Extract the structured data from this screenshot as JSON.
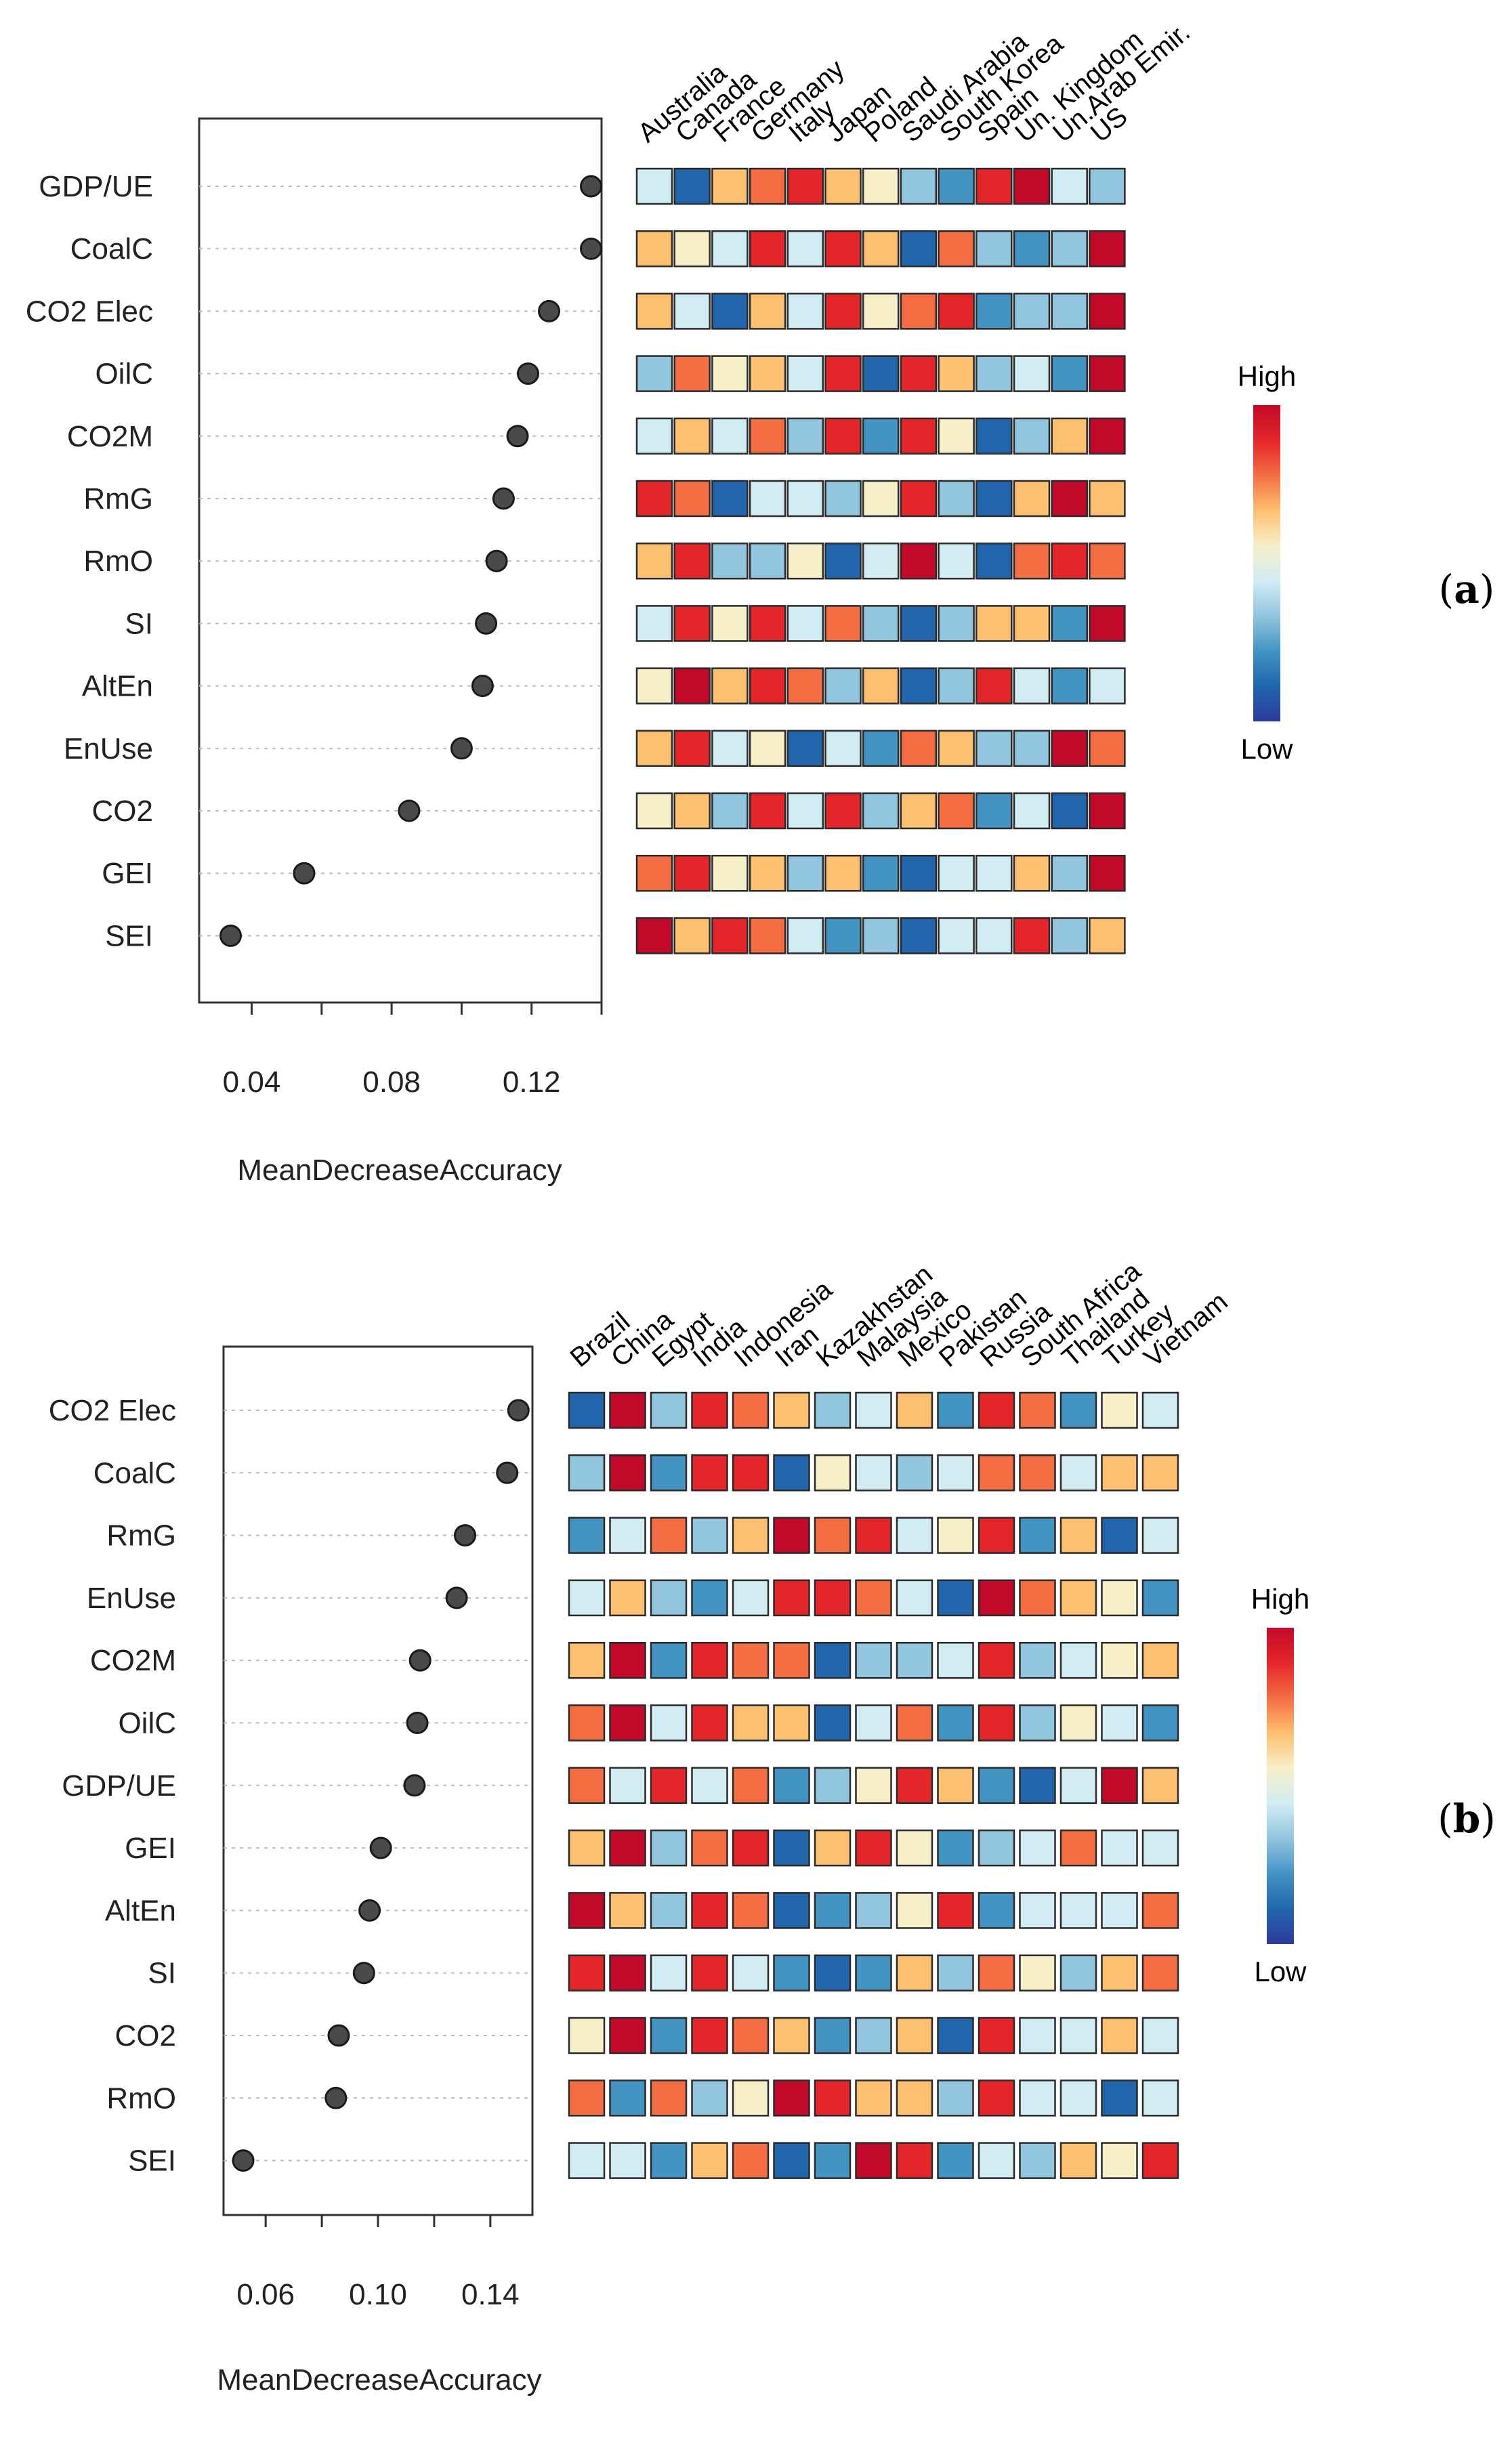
{
  "chart_data": [
    {
      "type": "dotplot",
      "panel_label": "(a)",
      "panel_letter": "a",
      "xlabel": "MeanDecreaseAccuracy",
      "xlim": [
        0.025,
        0.14
      ],
      "xticks": [
        0.04,
        0.08,
        0.12
      ],
      "xtick_labels": [
        "0.04",
        "0.08",
        "0.12"
      ],
      "categories": [
        "GDP/UE",
        "CoalC",
        "CO2 Elec",
        "OilC",
        "CO2M",
        "RmG",
        "RmO",
        "SI",
        "AltEn",
        "EnUse",
        "CO2",
        "GEI",
        "SEI"
      ],
      "values": [
        0.137,
        0.137,
        0.125,
        0.119,
        0.116,
        0.112,
        0.11,
        0.107,
        0.106,
        0.1,
        0.085,
        0.055,
        0.034
      ],
      "heatmap": {
        "columns": [
          "Australia",
          "Canada",
          "France",
          "Germany",
          "Italy",
          "Japan",
          "Poland",
          "Saudi Arabia",
          "South Korea",
          "Spain",
          "Un. Kingdom",
          "Un.Arab Emir.",
          "US"
        ],
        "scale": "1 = low (dark blue) ... 9 = high (dark red)",
        "rows": [
          [
            4,
            1,
            6,
            7,
            8,
            6,
            5,
            3,
            2,
            8,
            9,
            4,
            3
          ],
          [
            6,
            5,
            4,
            8,
            4,
            8,
            6,
            1,
            7,
            3,
            2,
            3,
            9
          ],
          [
            6,
            4,
            1,
            6,
            4,
            8,
            5,
            7,
            8,
            2,
            3,
            3,
            9
          ],
          [
            3,
            7,
            5,
            6,
            4,
            8,
            1,
            8,
            6,
            3,
            4,
            2,
            9
          ],
          [
            4,
            6,
            4,
            7,
            3,
            8,
            2,
            8,
            5,
            1,
            3,
            6,
            9
          ],
          [
            8,
            7,
            1,
            4,
            4,
            3,
            5,
            8,
            3,
            1,
            6,
            9,
            6
          ],
          [
            6,
            8,
            3,
            3,
            5,
            1,
            4,
            9,
            4,
            1,
            7,
            8,
            7
          ],
          [
            4,
            8,
            5,
            8,
            4,
            7,
            3,
            1,
            3,
            6,
            6,
            2,
            9
          ],
          [
            5,
            9,
            6,
            8,
            7,
            3,
            6,
            1,
            3,
            8,
            4,
            2,
            4
          ],
          [
            6,
            8,
            4,
            5,
            1,
            4,
            2,
            7,
            6,
            3,
            3,
            9,
            7
          ],
          [
            5,
            6,
            3,
            8,
            4,
            8,
            3,
            6,
            7,
            2,
            4,
            1,
            9
          ],
          [
            7,
            8,
            5,
            6,
            3,
            6,
            2,
            1,
            4,
            4,
            6,
            3,
            9
          ],
          [
            9,
            6,
            8,
            7,
            4,
            2,
            3,
            1,
            4,
            4,
            8,
            3,
            6
          ]
        ]
      },
      "legend": {
        "high": "High",
        "low": "Low"
      }
    },
    {
      "type": "dotplot",
      "panel_label": "(b)",
      "panel_letter": "b",
      "xlabel": "MeanDecreaseAccuracy",
      "xlim": [
        0.045,
        0.155
      ],
      "xticks": [
        0.06,
        0.1,
        0.14
      ],
      "xtick_labels": [
        "0.06",
        "0.10",
        "0.14"
      ],
      "categories": [
        "CO2 Elec",
        "CoalC",
        "RmG",
        "EnUse",
        "CO2M",
        "OilC",
        "GDP/UE",
        "GEI",
        "AltEn",
        "SI",
        "CO2",
        "RmO",
        "SEI"
      ],
      "values": [
        0.15,
        0.146,
        0.131,
        0.128,
        0.115,
        0.114,
        0.113,
        0.101,
        0.097,
        0.095,
        0.086,
        0.085,
        0.052
      ],
      "heatmap": {
        "columns": [
          "Brazil",
          "China",
          "Egypt",
          "India",
          "Indonesia",
          "Iran",
          "Kazakhstan",
          "Malaysia",
          "Mexico",
          "Pakistan",
          "Russia",
          "South Africa",
          "Thailand",
          "Turkey",
          "Vietnam"
        ],
        "scale": "1 = low (dark blue) ... 9 = high (dark red)",
        "rows": [
          [
            1,
            9,
            3,
            8,
            7,
            6,
            3,
            4,
            6,
            2,
            8,
            7,
            2,
            5,
            4
          ],
          [
            3,
            9,
            2,
            8,
            8,
            1,
            5,
            4,
            3,
            4,
            7,
            7,
            4,
            6,
            6
          ],
          [
            2,
            4,
            7,
            3,
            6,
            9,
            7,
            8,
            4,
            5,
            8,
            2,
            6,
            1,
            4
          ],
          [
            4,
            6,
            3,
            2,
            4,
            8,
            8,
            7,
            4,
            1,
            9,
            7,
            6,
            5,
            2
          ],
          [
            6,
            9,
            2,
            8,
            7,
            7,
            1,
            3,
            3,
            4,
            8,
            3,
            4,
            5,
            6
          ],
          [
            7,
            9,
            4,
            8,
            6,
            6,
            1,
            4,
            7,
            2,
            8,
            3,
            5,
            4,
            2
          ],
          [
            7,
            4,
            8,
            4,
            7,
            2,
            3,
            5,
            8,
            6,
            2,
            1,
            4,
            9,
            6
          ],
          [
            6,
            9,
            3,
            7,
            8,
            1,
            6,
            8,
            5,
            2,
            3,
            4,
            7,
            4,
            4
          ],
          [
            9,
            6,
            3,
            8,
            7,
            1,
            2,
            3,
            5,
            8,
            2,
            4,
            4,
            4,
            7
          ],
          [
            8,
            9,
            4,
            8,
            4,
            2,
            1,
            2,
            6,
            3,
            7,
            5,
            3,
            6,
            7
          ],
          [
            5,
            9,
            2,
            8,
            7,
            6,
            2,
            3,
            6,
            1,
            8,
            4,
            4,
            6,
            4
          ],
          [
            7,
            2,
            7,
            3,
            5,
            9,
            8,
            6,
            6,
            3,
            8,
            4,
            4,
            1,
            4
          ],
          [
            4,
            4,
            2,
            6,
            7,
            1,
            2,
            9,
            8,
            2,
            4,
            3,
            6,
            5,
            8
          ]
        ]
      },
      "legend": {
        "high": "High",
        "low": "Low"
      }
    }
  ],
  "colors": {
    "scale": [
      "#2b3a9e",
      "#2166ac",
      "#4393c3",
      "#92c5de",
      "#d1ecf3",
      "#f7efc8",
      "#fdc070",
      "#f46d43",
      "#e4262b",
      "#c2092a"
    ],
    "dot_fill": "#4a4a4a",
    "grid": "#bbbbbb"
  }
}
